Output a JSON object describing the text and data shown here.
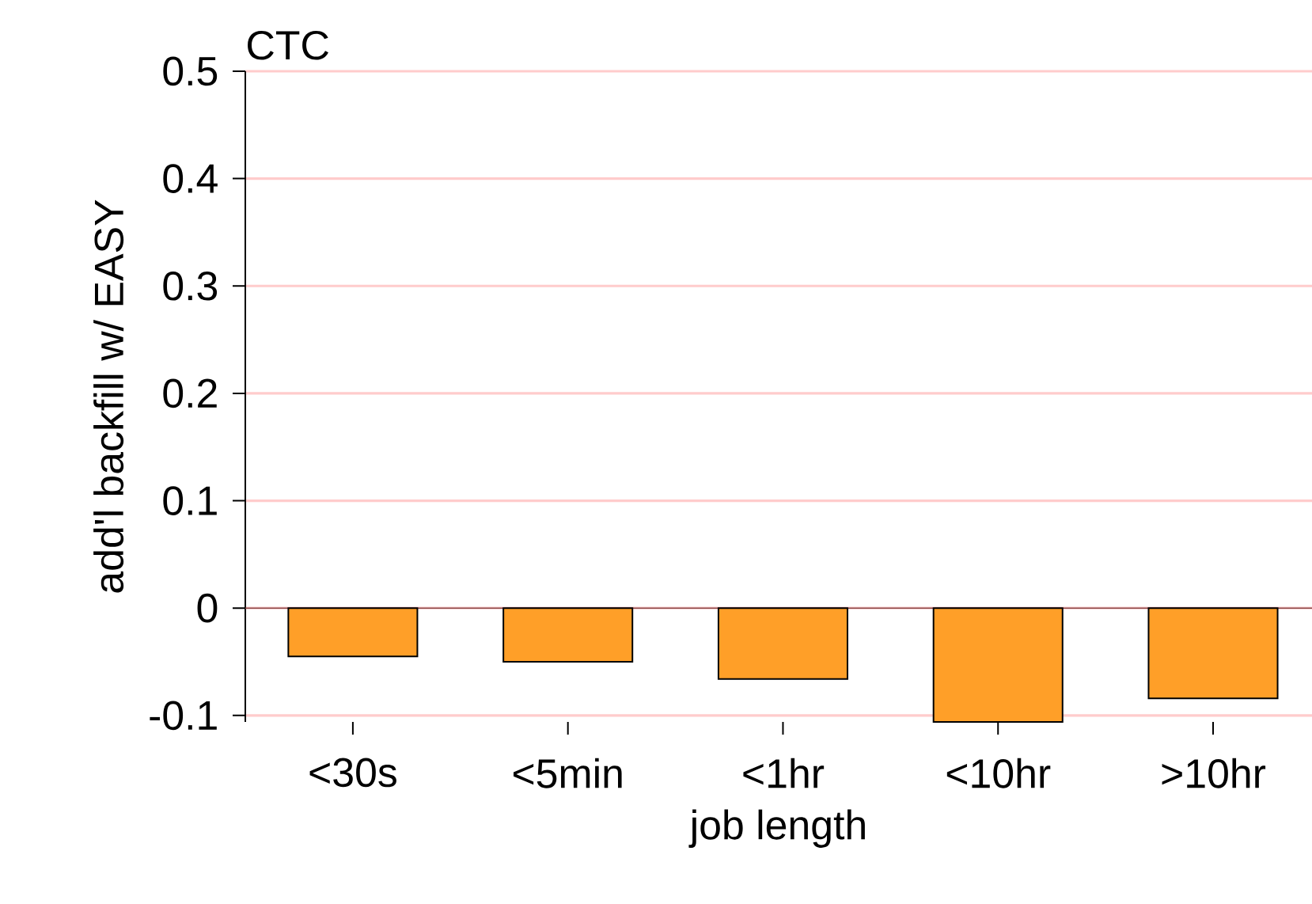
{
  "chart_data": {
    "type": "bar",
    "title": "CTC",
    "xlabel": "job length",
    "ylabel": "add'l backfill w/ EASY",
    "categories": [
      "<30s",
      "<5min",
      "<1hr",
      "<10hr",
      ">10hr"
    ],
    "values": [
      -0.045,
      -0.05,
      -0.066,
      -0.106,
      -0.084
    ],
    "color": "#ff9f28",
    "ylim": [
      -0.106,
      0.5
    ],
    "yticks": [
      -0.1,
      0,
      0.1,
      0.2,
      0.3,
      0.4,
      0.5
    ],
    "grid": "y",
    "ref_lines": [
      {
        "axis": "y",
        "value": 0,
        "color": "#8b4a4a"
      }
    ]
  }
}
